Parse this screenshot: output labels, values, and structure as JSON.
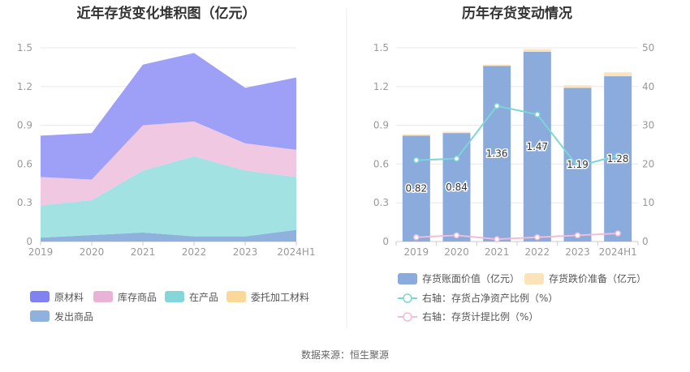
{
  "chart_data": [
    {
      "type": "area",
      "stacked": true,
      "title": "近年存货变化堆积图（亿元）",
      "categories": [
        "2019",
        "2020",
        "2021",
        "2022",
        "2023",
        "2024H1"
      ],
      "ylim": [
        0,
        1.5
      ],
      "yticks": [
        "0",
        "0.3",
        "0.6",
        "0.9",
        "1.2",
        "1.5"
      ],
      "series": [
        {
          "name": "发出商品",
          "color": "#8fb1dd",
          "values": [
            0.03,
            0.05,
            0.07,
            0.04,
            0.04,
            0.09
          ]
        },
        {
          "name": "在产品",
          "color": "#a3e2e2",
          "values": [
            0.25,
            0.27,
            0.48,
            0.62,
            0.51,
            0.41
          ]
        },
        {
          "name": "委托加工材料",
          "color": "#fcd898",
          "values": [
            0.0,
            0.0,
            0.0,
            0.0,
            0.0,
            0.0
          ]
        },
        {
          "name": "库存商品",
          "color": "#f0c8e2",
          "values": [
            0.22,
            0.16,
            0.35,
            0.27,
            0.21,
            0.21
          ]
        },
        {
          "name": "原材料",
          "color": "#9e9ff7",
          "values": [
            0.32,
            0.36,
            0.47,
            0.53,
            0.43,
            0.56
          ]
        }
      ],
      "legend": [
        {
          "name": "原材料",
          "color": "#8082f2"
        },
        {
          "name": "库存商品",
          "color": "#e9b3d8"
        },
        {
          "name": "在产品",
          "color": "#84d6d8"
        },
        {
          "name": "委托加工材料",
          "color": "#fcd898"
        },
        {
          "name": "发出商品",
          "color": "#8fb1dd"
        }
      ]
    },
    {
      "type": "bar",
      "title": "历年存货变动情况",
      "categories": [
        "2019",
        "2020",
        "2021",
        "2022",
        "2023",
        "2024H1"
      ],
      "ylim": [
        0,
        1.5
      ],
      "yticks": [
        "0",
        "0.3",
        "0.6",
        "0.9",
        "1.2",
        "1.5"
      ],
      "y2lim": [
        0,
        50
      ],
      "y2ticks": [
        "0",
        "10",
        "20",
        "30",
        "40",
        "50"
      ],
      "series": [
        {
          "name": "存货账面价值（亿元）",
          "axis": "left",
          "type": "bar",
          "color": "#8aabdb",
          "values": [
            0.82,
            0.84,
            1.36,
            1.47,
            1.19,
            1.28
          ],
          "labels": [
            "0.82",
            "0.84",
            "1.36",
            "1.47",
            "1.19",
            "1.28"
          ]
        },
        {
          "name": "存货跌价准备（亿元）",
          "axis": "left",
          "type": "bar-stack",
          "color": "#fce3b8",
          "values": [
            0.01,
            0.01,
            0.01,
            0.02,
            0.02,
            0.03
          ]
        },
        {
          "name": "右轴：存货占净资产比例（%）",
          "axis": "right",
          "type": "line",
          "color": "#7dd6d6",
          "values": [
            21.0,
            21.4,
            35.0,
            32.8,
            19.4,
            22.2
          ]
        },
        {
          "name": "右轴：存货计提比例（%）",
          "axis": "right",
          "type": "line",
          "color": "#f2bcd9",
          "values": [
            1.1,
            1.6,
            0.6,
            1.1,
            1.6,
            2.1
          ]
        }
      ]
    }
  ],
  "source": "数据来源：恒生聚源"
}
